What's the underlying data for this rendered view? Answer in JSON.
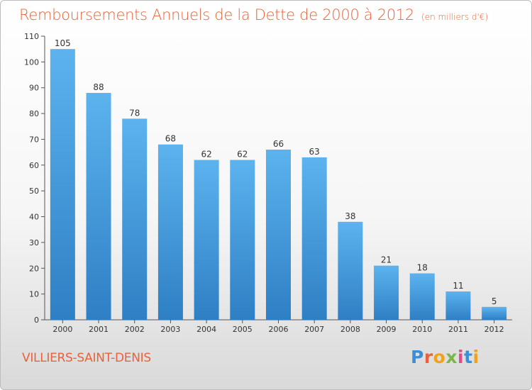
{
  "header": {
    "title": "Remboursements Annuels de la Dette de 2000 à 2012",
    "unit": "(en milliers d'€)"
  },
  "footer": {
    "commune": "VILLIERS-SAINT-DENIS",
    "logo_text": "Proxiti"
  },
  "colors": {
    "title": "#e8623a",
    "bar_top": "#5cb3ee",
    "bar_bottom": "#2e7fc4"
  },
  "chart_data": {
    "type": "bar",
    "title": "Remboursements Annuels de la Dette de 2000 à 2012",
    "categories": [
      "2000",
      "2001",
      "2002",
      "2003",
      "2004",
      "2005",
      "2006",
      "2007",
      "2008",
      "2009",
      "2010",
      "2011",
      "2012"
    ],
    "values": [
      105,
      88,
      78,
      68,
      62,
      62,
      66,
      63,
      38,
      21,
      18,
      11,
      5
    ],
    "ylim": [
      0,
      110
    ],
    "yticks": [
      0,
      10,
      20,
      30,
      40,
      50,
      60,
      70,
      80,
      90,
      100,
      110
    ],
    "grid": false,
    "data_labels": true
  }
}
